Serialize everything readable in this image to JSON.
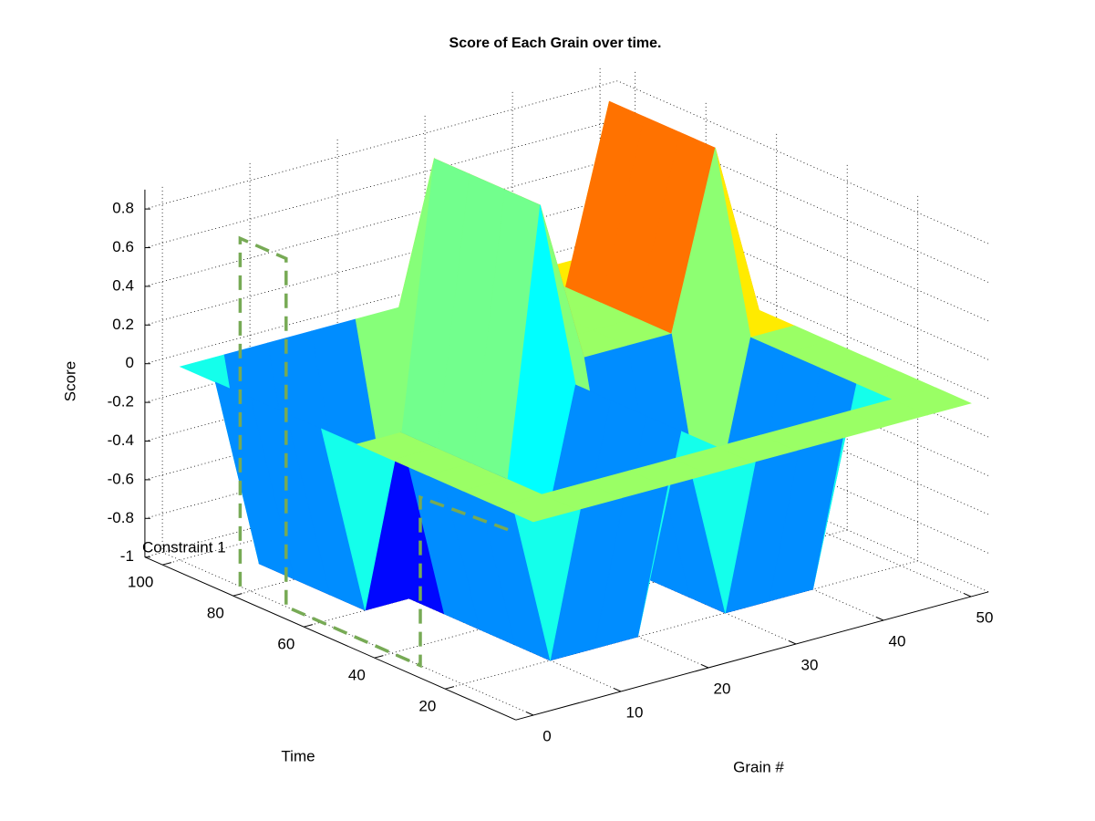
{
  "chart_data": {
    "type": "surface",
    "title": "Score of Each Grain over time.",
    "xlabel": "Grain #",
    "ylabel": "Time",
    "zlabel": "Score",
    "x": [
      0,
      5,
      10,
      15,
      20,
      25,
      30,
      35,
      40,
      45,
      50
    ],
    "y": [
      0,
      10,
      20,
      30,
      40,
      50,
      60,
      70,
      80,
      90,
      100
    ],
    "z": [
      [
        0,
        0,
        0,
        0,
        0,
        0,
        0,
        0,
        0,
        0,
        0
      ],
      [
        0,
        0,
        0,
        0,
        0,
        0,
        0,
        0,
        0,
        0,
        0
      ],
      [
        0,
        0,
        -1,
        -1,
        -1,
        0,
        -1,
        -1,
        -1,
        0,
        0
      ],
      [
        0,
        0,
        -1,
        -1,
        -1,
        0,
        -1,
        -1,
        -1,
        0,
        0
      ],
      [
        0,
        0,
        -1,
        -1,
        -1,
        0,
        -1,
        -1,
        -1,
        0,
        0
      ],
      [
        0,
        0,
        -1,
        -1,
        -1,
        0,
        -1,
        -1,
        -1,
        0,
        0
      ],
      [
        0,
        -1,
        -1,
        -1,
        -1,
        0.85,
        0,
        0,
        0,
        0.9,
        0
      ],
      [
        0,
        -1,
        -1,
        -1,
        -1,
        0.85,
        0,
        0,
        0,
        0.9,
        0
      ],
      [
        0,
        -1,
        -1,
        -1,
        -1,
        0.85,
        0,
        0,
        0,
        0.9,
        0
      ],
      [
        0,
        -1,
        -1,
        -1,
        -1,
        0.85,
        0,
        0,
        0,
        0.9,
        0
      ],
      [
        0,
        0,
        0,
        0,
        0,
        0,
        0,
        0,
        0,
        0,
        0
      ]
    ],
    "xlim": [
      -2,
      52
    ],
    "ylim": [
      0,
      105
    ],
    "zlim": [
      -1,
      0.9
    ],
    "xticks": [
      0,
      10,
      20,
      30,
      40,
      50
    ],
    "yticks": [
      20,
      40,
      60,
      80,
      100
    ],
    "zticks": [
      -1,
      -0.8,
      -0.6,
      -0.4,
      -0.2,
      0,
      0.2,
      0.4,
      0.6,
      0.8
    ],
    "colormap": "jet",
    "grid": true,
    "constraint": {
      "label": "Constraint 1",
      "color": "#77aa55",
      "x": [
        0,
        0,
        0,
        0,
        0,
        0,
        10
      ],
      "y": [
        83,
        83,
        70,
        70,
        32,
        32,
        32
      ],
      "z": [
        -1,
        0.8,
        0.8,
        -1,
        -1,
        -0.13,
        -0.42
      ]
    }
  }
}
